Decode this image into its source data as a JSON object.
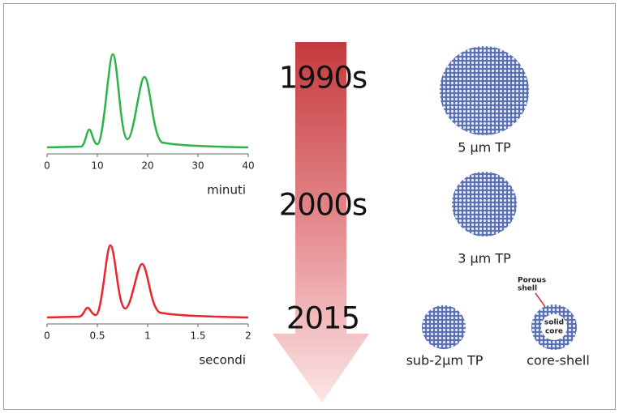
{
  "chromatograms": [
    {
      "xlim": [
        0,
        40
      ],
      "xticks": [
        0,
        10,
        20,
        30,
        40
      ],
      "unit": "minuti"
    },
    {
      "xlim": [
        0,
        2
      ],
      "xticks": [
        0,
        0.5,
        1,
        1.5,
        2
      ],
      "unit": "secondi"
    }
  ],
  "timeline": [
    "1990s",
    "2000s",
    "2015"
  ],
  "particles": [
    {
      "label": "5 µm TP"
    },
    {
      "label": "3 µm TP"
    },
    {
      "label": "sub-2µm TP"
    },
    {
      "label": "core-shell",
      "shell_label": [
        "Porous",
        "shell"
      ],
      "core_label": [
        "solid",
        "core"
      ]
    }
  ]
}
